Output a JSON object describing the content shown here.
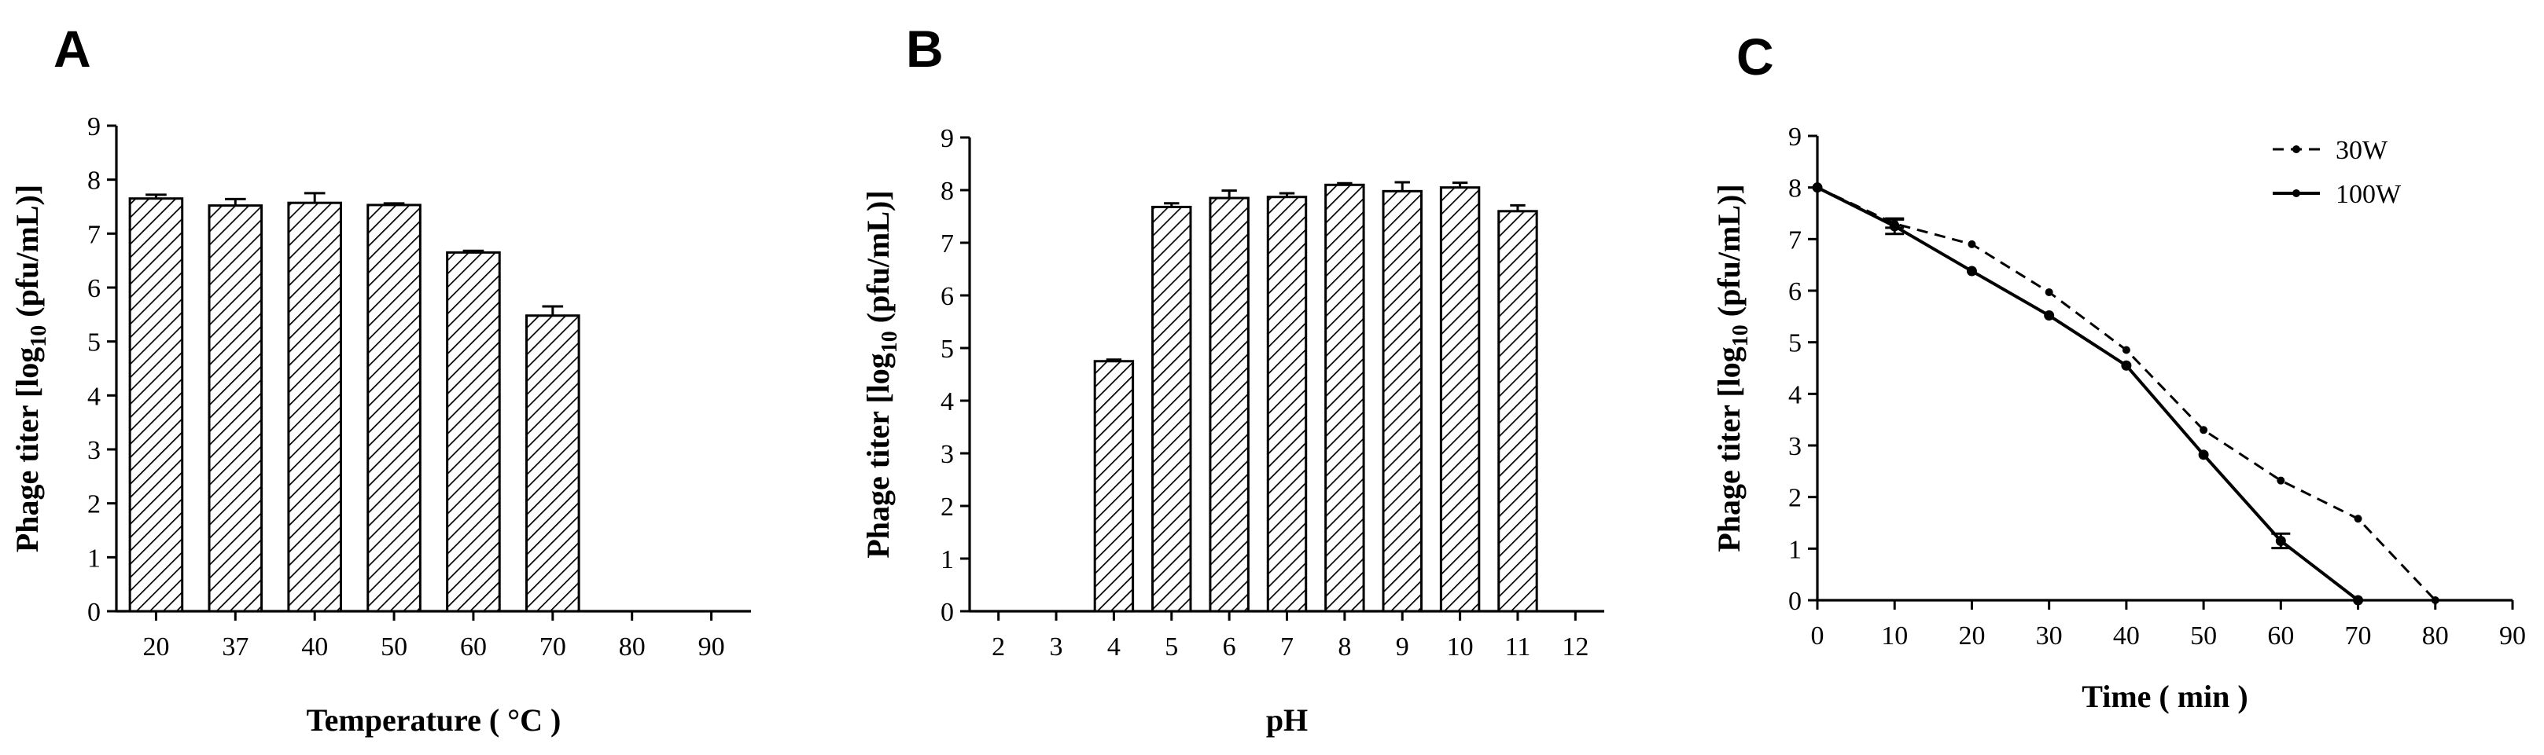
{
  "chart_data": [
    {
      "type": "bar",
      "panel_label": "A",
      "categories": [
        "20",
        "37",
        "40",
        "50",
        "60",
        "70",
        "80",
        "90"
      ],
      "values": [
        7.65,
        7.52,
        7.57,
        7.53,
        6.65,
        5.48,
        0,
        0
      ],
      "errors": [
        0.07,
        0.12,
        0.18,
        0.03,
        0.03,
        0.17,
        0,
        0
      ],
      "xlabel": "Temperature ( °C )",
      "ylabel": "Phage titer [log",
      "ylabel_sub": "10",
      "ylabel_end": " (pfu/mL)]",
      "ylim": [
        0,
        9
      ],
      "yticks": [
        "0",
        "1",
        "2",
        "3",
        "4",
        "5",
        "6",
        "7",
        "8",
        "9"
      ],
      "fill": "diagonal-hatch",
      "grid": false
    },
    {
      "type": "bar",
      "panel_label": "B",
      "categories": [
        "2",
        "3",
        "4",
        "5",
        "6",
        "7",
        "8",
        "9",
        "10",
        "11",
        "12"
      ],
      "values": [
        0,
        0,
        4.75,
        7.68,
        7.85,
        7.87,
        8.1,
        7.98,
        8.05,
        7.6,
        0
      ],
      "errors": [
        0,
        0,
        0.03,
        0.07,
        0.14,
        0.07,
        0.03,
        0.17,
        0.09,
        0.11,
        0
      ],
      "xlabel": "pH",
      "ylabel": "Phage titer [log",
      "ylabel_sub": "10",
      "ylabel_end": " (pfu/mL)]",
      "ylim": [
        0,
        9
      ],
      "yticks": [
        "0",
        "1",
        "2",
        "3",
        "4",
        "5",
        "6",
        "7",
        "8",
        "9"
      ],
      "fill": "diagonal-hatch",
      "grid": false
    },
    {
      "type": "line",
      "panel_label": "C",
      "xlabel": "Time ( min )",
      "ylabel": "Phage titer [log",
      "ylabel_sub": "10",
      "ylabel_end": " (pfu/mL)]",
      "xlim": [
        0,
        90
      ],
      "ylim": [
        0,
        9
      ],
      "xticks": [
        "0",
        "10",
        "20",
        "30",
        "40",
        "50",
        "60",
        "70",
        "80",
        "90"
      ],
      "yticks": [
        "0",
        "1",
        "2",
        "3",
        "4",
        "5",
        "6",
        "7",
        "8",
        "9"
      ],
      "legend_position": "top-right",
      "grid": false,
      "series": [
        {
          "name": "30W",
          "style": "dashed",
          "x": [
            0,
            10,
            20,
            30,
            40,
            50,
            60,
            70,
            80
          ],
          "y": [
            8.0,
            7.3,
            6.9,
            5.97,
            4.85,
            3.3,
            2.32,
            1.58,
            0.0
          ],
          "errors": [
            0.05,
            0.08,
            0.03,
            0.03,
            0.03,
            0.03,
            0.03,
            0.03,
            0.03
          ]
        },
        {
          "name": "100W",
          "style": "solid",
          "x": [
            0,
            10,
            20,
            30,
            40,
            50,
            60,
            70
          ],
          "y": [
            8.0,
            7.25,
            6.38,
            5.52,
            4.55,
            2.82,
            1.15,
            0.0
          ],
          "errors": [
            0.05,
            0.15,
            0.03,
            0.03,
            0.03,
            0.03,
            0.14,
            0.03
          ]
        }
      ]
    }
  ]
}
